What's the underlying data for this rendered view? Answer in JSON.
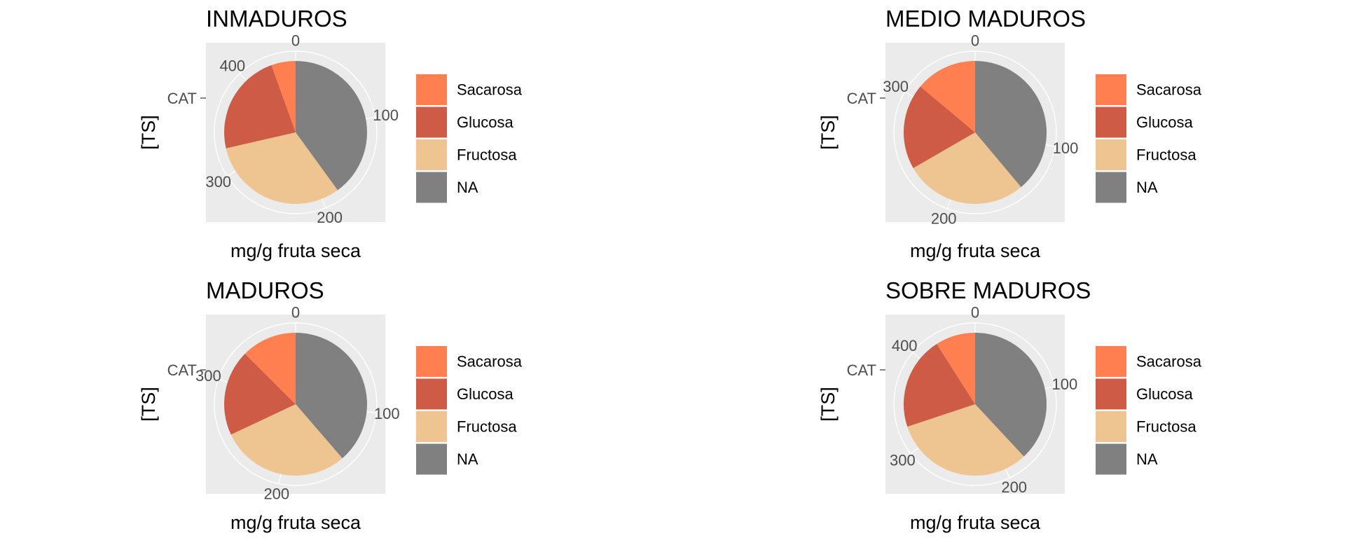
{
  "chart_data": [
    {
      "type": "pie",
      "title": "INMADUROS",
      "xlabel": "mg/g fruta seca",
      "ylabel": "[TS]",
      "y_tick": "CAT",
      "categories": [
        "Sacarosa",
        "Glucosa",
        "Fructosa",
        "NA"
      ],
      "values": [
        25,
        105,
        143,
        182
      ],
      "theta_ticks": [
        0,
        100,
        200,
        300,
        400
      ],
      "theta_max": 455
    },
    {
      "type": "pie",
      "title": "MEDIO MADUROS",
      "xlabel": "mg/g fruta seca",
      "ylabel": "[TS]",
      "y_tick": "CAT",
      "categories": [
        "Sacarosa",
        "Glucosa",
        "Fructosa",
        "NA"
      ],
      "values": [
        50,
        70,
        100,
        140
      ],
      "theta_ticks": [
        0,
        100,
        200,
        300
      ],
      "theta_max": 360
    },
    {
      "type": "pie",
      "title": "MADUROS",
      "xlabel": "mg/g fruta seca",
      "ylabel": "[TS]",
      "y_tick": "CAT",
      "categories": [
        "Sacarosa",
        "Glucosa",
        "Fructosa",
        "NA"
      ],
      "values": [
        47,
        73,
        110,
        145
      ],
      "theta_ticks": [
        0,
        100,
        200,
        300
      ],
      "theta_max": 375
    },
    {
      "type": "pie",
      "title": "SOBRE MADUROS",
      "xlabel": "mg/g fruta seca",
      "ylabel": "[TS]",
      "y_tick": "CAT",
      "categories": [
        "Sacarosa",
        "Glucosa",
        "Fructosa",
        "NA"
      ],
      "values": [
        42,
        98,
        148,
        177
      ],
      "theta_ticks": [
        0,
        100,
        200,
        300,
        400
      ],
      "theta_max": 465
    }
  ],
  "legend": {
    "items": [
      "Sacarosa",
      "Glucosa",
      "Fructosa",
      "NA"
    ],
    "colors": [
      "#ff7f50",
      "#cd5b45",
      "#eec591",
      "#808080"
    ],
    "placement": "right"
  }
}
